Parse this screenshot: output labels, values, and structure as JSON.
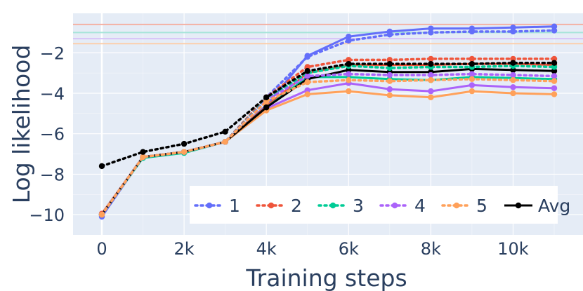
{
  "chart_data": {
    "type": "line",
    "xlabel": "Training steps",
    "ylabel": "Log likelihood",
    "x": [
      0,
      1000,
      2000,
      3000,
      4000,
      5000,
      6000,
      7000,
      8000,
      9000,
      10000,
      11000
    ],
    "xlim": [
      -700,
      11700
    ],
    "ylim": [
      -11,
      -0.05
    ],
    "x_ticks": [
      0,
      2000,
      4000,
      6000,
      8000,
      10000
    ],
    "x_tick_labels": [
      "0",
      "2k",
      "4k",
      "6k",
      "8k",
      "10k"
    ],
    "y_ticks": [
      -10,
      -8,
      -6,
      -4,
      -2
    ],
    "y_tick_labels": [
      "−10",
      "−8",
      "−6",
      "−4",
      "−2"
    ],
    "grid": true,
    "background": "#e5ecf6",
    "legend": {
      "placement": "bottom-right",
      "orientation": "horizontal"
    },
    "reference_lines": [
      {
        "y": -0.6,
        "color": "#f4b0a3"
      },
      {
        "y": -1.0,
        "color": "#a6e5d9"
      },
      {
        "y": -1.3,
        "color": "#d7c3f9"
      },
      {
        "y": -1.55,
        "color": "#fbcfac"
      }
    ],
    "series": [
      {
        "name": "1",
        "color": "#636efa",
        "dash": "solid",
        "legend": false,
        "values": [
          -10.1,
          -7.15,
          -6.9,
          -6.4,
          -4.6,
          -2.15,
          -1.2,
          -0.95,
          -0.8,
          -0.8,
          -0.75,
          -0.7
        ]
      },
      {
        "name": "2",
        "color": "#ef553b",
        "dash": "solid",
        "legend": false,
        "values": [
          -9.95,
          -7.15,
          -6.9,
          -6.4,
          -4.65,
          -3.0,
          -2.6,
          -2.6,
          -2.6,
          -2.55,
          -2.55,
          -2.6
        ]
      },
      {
        "name": "3",
        "color": "#00cc96",
        "dash": "solid",
        "legend": false,
        "values": [
          -10.0,
          -7.2,
          -6.95,
          -6.4,
          -4.7,
          -3.2,
          -3.2,
          -3.3,
          -3.35,
          -3.2,
          -3.25,
          -3.3
        ]
      },
      {
        "name": "4",
        "color": "#ab63fa",
        "dash": "solid",
        "legend": false,
        "values": [
          -10.0,
          -7.15,
          -6.9,
          -6.4,
          -4.75,
          -3.85,
          -3.5,
          -3.8,
          -3.9,
          -3.6,
          -3.7,
          -3.75
        ]
      },
      {
        "name": "5",
        "color": "#ffa15a",
        "dash": "solid",
        "legend": false,
        "values": [
          -10.0,
          -7.15,
          -6.9,
          -6.4,
          -4.85,
          -4.05,
          -3.9,
          -4.1,
          -4.2,
          -3.9,
          -4.0,
          -4.05
        ]
      },
      {
        "name": "Avg",
        "color": "#000000",
        "dash": "solid",
        "legend": false,
        "values": [
          -10.0,
          -7.15,
          -6.9,
          -6.4,
          -4.7,
          -3.3,
          -2.85,
          -2.95,
          -2.95,
          -2.8,
          -2.85,
          -2.9
        ]
      },
      {
        "name": "1",
        "color": "#636efa",
        "dash": "dot",
        "legend": true,
        "values": [
          -10.0,
          -7.15,
          -6.9,
          -6.4,
          -4.2,
          -2.2,
          -1.4,
          -1.1,
          -1.0,
          -0.95,
          -0.95,
          -0.9
        ]
      },
      {
        "name": "2",
        "color": "#ef553b",
        "dash": "dot",
        "legend": true,
        "values": [
          -10.0,
          -7.15,
          -6.9,
          -6.4,
          -4.2,
          -2.7,
          -2.35,
          -2.35,
          -2.3,
          -2.3,
          -2.3,
          -2.3
        ]
      },
      {
        "name": "3",
        "color": "#00cc96",
        "dash": "dot",
        "legend": true,
        "values": [
          -10.0,
          -7.15,
          -6.9,
          -6.4,
          -4.3,
          -3.0,
          -2.65,
          -2.75,
          -2.7,
          -2.7,
          -2.65,
          -2.7
        ]
      },
      {
        "name": "4",
        "color": "#ab63fa",
        "dash": "dot",
        "legend": true,
        "values": [
          -10.0,
          -7.15,
          -6.9,
          -6.4,
          -4.35,
          -3.15,
          -3.05,
          -3.1,
          -3.1,
          -3.05,
          -3.1,
          -3.15
        ]
      },
      {
        "name": "5",
        "color": "#ffa15a",
        "dash": "dot",
        "legend": true,
        "values": [
          -10.0,
          -7.15,
          -6.9,
          -6.4,
          -4.4,
          -3.45,
          -3.35,
          -3.4,
          -3.35,
          -3.3,
          -3.35,
          -3.4
        ]
      },
      {
        "name": "Avg",
        "color": "#000000",
        "dash": "dot",
        "legend": false,
        "values": [
          -7.6,
          -6.9,
          -6.5,
          -5.9,
          -4.2,
          -2.9,
          -2.55,
          -2.55,
          -2.55,
          -2.55,
          -2.5,
          -2.5
        ]
      }
    ],
    "legend_entries": [
      {
        "name": "1",
        "color": "#636efa",
        "dash": "dot"
      },
      {
        "name": "2",
        "color": "#ef553b",
        "dash": "dot"
      },
      {
        "name": "3",
        "color": "#00cc96",
        "dash": "dot"
      },
      {
        "name": "4",
        "color": "#ab63fa",
        "dash": "dot"
      },
      {
        "name": "5",
        "color": "#ffa15a",
        "dash": "dot"
      },
      {
        "name": "Avg",
        "color": "#000000",
        "dash": "solid"
      }
    ]
  }
}
